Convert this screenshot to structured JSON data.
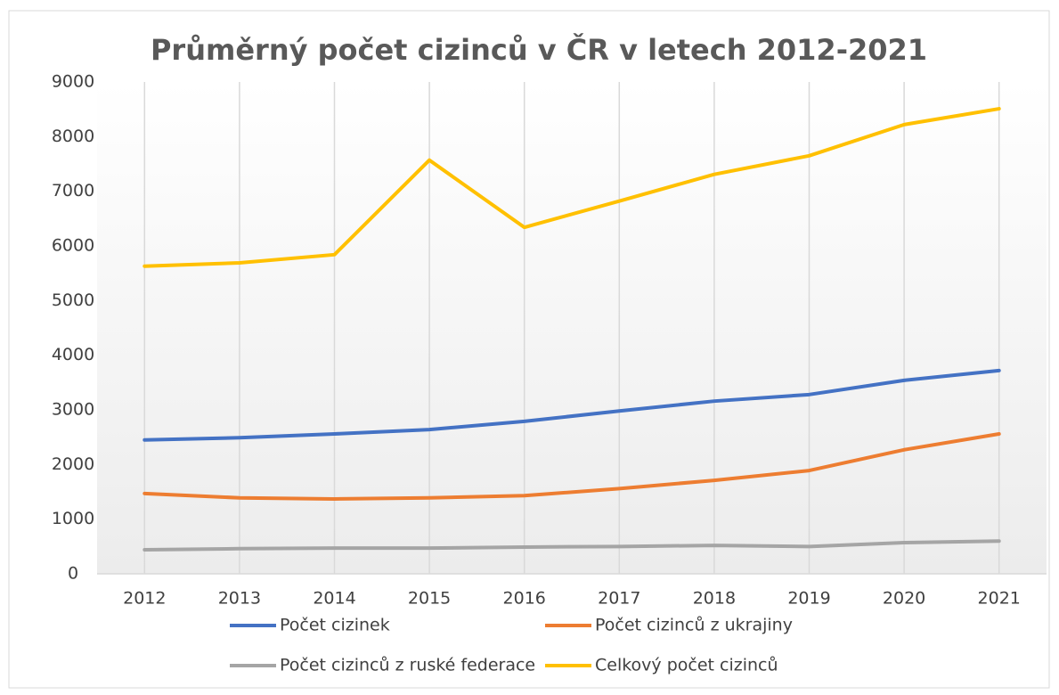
{
  "chart_data": {
    "type": "line",
    "title": "Průměrný počet cizinců v ČR v letech 2012-2021",
    "categories": [
      "2012",
      "2013",
      "2014",
      "2015",
      "2016",
      "2017",
      "2018",
      "2019",
      "2020",
      "2021"
    ],
    "series": [
      {
        "name": "Počet cizinek",
        "color": "#4472c4",
        "values": [
          2450,
          2490,
          2560,
          2640,
          2790,
          2980,
          3160,
          3280,
          3540,
          3720
        ]
      },
      {
        "name": "Počet cizinců z ukrajiny",
        "color": "#ed7d31",
        "values": [
          1470,
          1390,
          1370,
          1390,
          1430,
          1560,
          1710,
          1890,
          2270,
          2560
        ]
      },
      {
        "name": "Počet cizinců z ruské federace",
        "color": "#a5a5a5",
        "values": [
          440,
          460,
          470,
          470,
          490,
          500,
          520,
          500,
          570,
          600
        ]
      },
      {
        "name": "Celkový počet cizinců",
        "color": "#ffc000",
        "values": [
          5630,
          5690,
          5840,
          7570,
          6340,
          6820,
          7310,
          7650,
          8220,
          8510
        ]
      }
    ],
    "ylim": [
      0,
      9000
    ],
    "yticks": [
      0,
      1000,
      2000,
      3000,
      4000,
      5000,
      6000,
      7000,
      8000,
      9000
    ],
    "grid": "x"
  }
}
